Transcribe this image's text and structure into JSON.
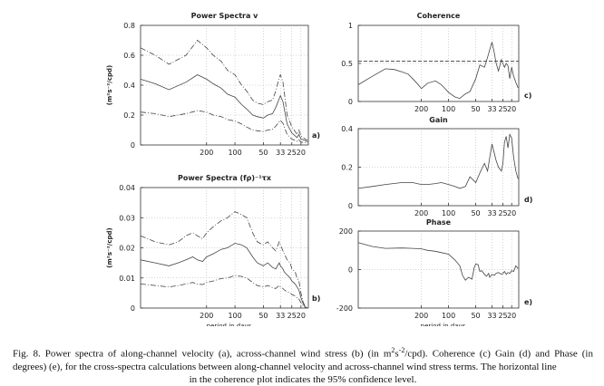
{
  "chart_data": [
    {
      "id": "a",
      "type": "line",
      "title": "Power Spectra v",
      "ylabel": "(m²s⁻²/cpd)",
      "xlabel": "",
      "panel_label": "a)",
      "ylim": [
        0,
        0.8
      ],
      "y_ticks": [
        0,
        0.2,
        0.4,
        0.6,
        0.8
      ],
      "y_tick_labels": [
        "0",
        "0.2",
        "0.4",
        "0.6",
        "0.8"
      ],
      "x_ticks": [
        200,
        100,
        50,
        33,
        25,
        20
      ],
      "x_tick_labels": [
        "200",
        "100",
        "50",
        "33",
        "25",
        "20"
      ],
      "x_range_period_days": [
        1000,
        16.7
      ],
      "grid": true,
      "series": [
        {
          "name": "upper 95%",
          "style": "dash-dot",
          "x": [
            1000,
            700,
            500,
            330,
            250,
            200,
            170,
            140,
            120,
            100,
            85,
            75,
            65,
            58,
            50,
            45,
            40,
            37,
            34,
            33,
            31,
            30,
            28,
            26,
            25,
            23,
            22,
            21,
            20,
            19,
            18,
            17
          ],
          "values": [
            0.65,
            0.6,
            0.54,
            0.6,
            0.7,
            0.65,
            0.6,
            0.56,
            0.5,
            0.47,
            0.4,
            0.36,
            0.3,
            0.28,
            0.27,
            0.29,
            0.3,
            0.36,
            0.45,
            0.47,
            0.42,
            0.35,
            0.2,
            0.15,
            0.12,
            0.09,
            0.07,
            0.1,
            0.06,
            0.05,
            0.04,
            0.03
          ]
        },
        {
          "name": "spectrum",
          "style": "solid",
          "x": [
            1000,
            700,
            500,
            330,
            250,
            200,
            170,
            140,
            120,
            100,
            85,
            75,
            65,
            58,
            50,
            45,
            40,
            37,
            34,
            33,
            31,
            30,
            28,
            26,
            25,
            23,
            22,
            21,
            20,
            19,
            18,
            17
          ],
          "values": [
            0.44,
            0.41,
            0.37,
            0.42,
            0.47,
            0.44,
            0.41,
            0.38,
            0.34,
            0.32,
            0.27,
            0.24,
            0.2,
            0.19,
            0.18,
            0.2,
            0.21,
            0.25,
            0.31,
            0.33,
            0.29,
            0.24,
            0.14,
            0.1,
            0.08,
            0.06,
            0.05,
            0.07,
            0.04,
            0.035,
            0.03,
            0.02
          ]
        },
        {
          "name": "lower 95%",
          "style": "dash-dot",
          "x": [
            1000,
            700,
            500,
            330,
            250,
            200,
            170,
            140,
            120,
            100,
            85,
            75,
            65,
            58,
            50,
            45,
            40,
            37,
            34,
            33,
            31,
            30,
            28,
            26,
            25,
            23,
            22,
            21,
            20,
            19,
            18,
            17
          ],
          "values": [
            0.22,
            0.21,
            0.19,
            0.21,
            0.23,
            0.22,
            0.2,
            0.19,
            0.17,
            0.16,
            0.14,
            0.12,
            0.1,
            0.095,
            0.09,
            0.1,
            0.105,
            0.125,
            0.155,
            0.165,
            0.145,
            0.12,
            0.07,
            0.05,
            0.04,
            0.03,
            0.025,
            0.035,
            0.02,
            0.017,
            0.015,
            0.01
          ]
        }
      ]
    },
    {
      "id": "b",
      "type": "line",
      "title": "Power Spectra (fρ)⁻¹τx",
      "ylabel": "(m²s⁻²/cpd)",
      "xlabel": "period in days",
      "panel_label": "b)",
      "ylim": [
        0,
        0.04
      ],
      "y_ticks": [
        0,
        0.01,
        0.02,
        0.03,
        0.04
      ],
      "y_tick_labels": [
        "0",
        "0.01",
        "0.02",
        "0.03",
        "0.04"
      ],
      "x_ticks": [
        200,
        100,
        50,
        33,
        25,
        20
      ],
      "x_tick_labels": [
        "200",
        "100",
        "50",
        "33",
        "25",
        "20"
      ],
      "x_range_period_days": [
        1000,
        16.7
      ],
      "grid": true,
      "series": [
        {
          "name": "upper 95%",
          "style": "dash-dot",
          "x": [
            1000,
            700,
            500,
            400,
            330,
            280,
            250,
            220,
            200,
            170,
            140,
            120,
            100,
            85,
            75,
            65,
            58,
            50,
            45,
            40,
            37,
            34,
            33,
            31,
            30,
            28,
            26,
            25,
            23,
            22,
            21,
            20,
            19,
            18,
            17
          ],
          "values": [
            0.024,
            0.022,
            0.021,
            0.022,
            0.024,
            0.025,
            0.024,
            0.023,
            0.025,
            0.027,
            0.029,
            0.03,
            0.032,
            0.031,
            0.03,
            0.025,
            0.022,
            0.021,
            0.022,
            0.02,
            0.019,
            0.022,
            0.021,
            0.019,
            0.018,
            0.016,
            0.015,
            0.013,
            0.012,
            0.01,
            0.009,
            0.005,
            0.002,
            0.0005,
            0.0
          ]
        },
        {
          "name": "spectrum",
          "style": "solid",
          "x": [
            1000,
            700,
            500,
            400,
            330,
            280,
            250,
            220,
            200,
            170,
            140,
            120,
            100,
            85,
            75,
            65,
            58,
            50,
            45,
            40,
            37,
            34,
            33,
            31,
            30,
            28,
            26,
            25,
            23,
            22,
            21,
            20,
            19,
            18,
            17
          ],
          "values": [
            0.016,
            0.015,
            0.014,
            0.015,
            0.016,
            0.017,
            0.016,
            0.0155,
            0.017,
            0.018,
            0.0195,
            0.02,
            0.0215,
            0.021,
            0.02,
            0.017,
            0.015,
            0.014,
            0.015,
            0.0135,
            0.013,
            0.015,
            0.014,
            0.013,
            0.012,
            0.011,
            0.01,
            0.009,
            0.008,
            0.007,
            0.006,
            0.0035,
            0.0015,
            0.0003,
            0.0
          ]
        },
        {
          "name": "lower 95%",
          "style": "dash-dot",
          "x": [
            1000,
            700,
            500,
            400,
            330,
            280,
            250,
            220,
            200,
            170,
            140,
            120,
            100,
            85,
            75,
            65,
            58,
            50,
            45,
            40,
            37,
            34,
            33,
            31,
            30,
            28,
            26,
            25,
            23,
            22,
            21,
            20,
            19,
            18,
            17
          ],
          "values": [
            0.008,
            0.0075,
            0.007,
            0.0075,
            0.008,
            0.0085,
            0.008,
            0.0078,
            0.0085,
            0.009,
            0.0098,
            0.01,
            0.0108,
            0.0105,
            0.01,
            0.0085,
            0.0075,
            0.007,
            0.0075,
            0.0068,
            0.0065,
            0.0075,
            0.007,
            0.0065,
            0.006,
            0.0055,
            0.005,
            0.0045,
            0.004,
            0.0035,
            0.003,
            0.0018,
            0.0008,
            0.0002,
            0.0
          ]
        }
      ]
    },
    {
      "id": "c",
      "type": "line",
      "title": "Coherence",
      "ylabel": "",
      "xlabel": "",
      "panel_label": "c)",
      "ylim": [
        0,
        1
      ],
      "y_ticks": [
        0,
        0.5,
        1
      ],
      "y_tick_labels": [
        "0",
        "0.5",
        "1"
      ],
      "x_ticks": [
        200,
        100,
        50,
        33,
        25,
        20
      ],
      "x_tick_labels": [
        "200",
        "100",
        "50",
        "33",
        "25",
        "20"
      ],
      "x_range_period_days": [
        1000,
        16.7
      ],
      "grid": true,
      "confidence_level_95": 0.53,
      "series": [
        {
          "name": "coherence",
          "style": "solid",
          "x": [
            1000,
            700,
            500,
            400,
            330,
            280,
            250,
            220,
            200,
            170,
            140,
            120,
            100,
            85,
            75,
            65,
            58,
            50,
            45,
            40,
            37,
            35,
            33,
            31,
            30,
            28,
            26,
            25,
            24,
            23,
            22,
            21,
            20,
            19,
            18,
            17
          ],
          "values": [
            0.22,
            0.33,
            0.43,
            0.42,
            0.39,
            0.36,
            0.3,
            0.23,
            0.17,
            0.24,
            0.27,
            0.22,
            0.12,
            0.06,
            0.04,
            0.1,
            0.13,
            0.3,
            0.48,
            0.45,
            0.58,
            0.68,
            0.78,
            0.63,
            0.52,
            0.4,
            0.55,
            0.5,
            0.45,
            0.5,
            0.47,
            0.3,
            0.45,
            0.33,
            0.25,
            0.18
          ]
        }
      ]
    },
    {
      "id": "d",
      "type": "line",
      "title": "Gain",
      "ylabel": "",
      "xlabel": "",
      "panel_label": "d)",
      "ylim": [
        0,
        0.4
      ],
      "y_ticks": [
        0,
        0.2,
        0.4
      ],
      "y_tick_labels": [
        "0",
        "0.2",
        "0.4"
      ],
      "x_ticks": [
        200,
        100,
        50,
        33,
        25,
        20
      ],
      "x_tick_labels": [
        "200",
        "100",
        "50",
        "33",
        "25",
        "20"
      ],
      "x_range_period_days": [
        1000,
        16.7
      ],
      "grid": true,
      "series": [
        {
          "name": "gain",
          "style": "solid",
          "x": [
            1000,
            700,
            500,
            330,
            250,
            200,
            170,
            140,
            120,
            100,
            85,
            75,
            65,
            58,
            50,
            45,
            42,
            40,
            37,
            35,
            33,
            31,
            30,
            28,
            26,
            25,
            24,
            23,
            22,
            21,
            20,
            19,
            18,
            17
          ],
          "values": [
            0.09,
            0.1,
            0.11,
            0.12,
            0.12,
            0.11,
            0.11,
            0.115,
            0.12,
            0.11,
            0.1,
            0.09,
            0.1,
            0.15,
            0.12,
            0.17,
            0.2,
            0.22,
            0.18,
            0.25,
            0.32,
            0.27,
            0.24,
            0.2,
            0.18,
            0.22,
            0.33,
            0.36,
            0.3,
            0.37,
            0.35,
            0.25,
            0.18,
            0.14
          ]
        }
      ]
    },
    {
      "id": "e",
      "type": "line",
      "title": "Phase",
      "ylabel": "",
      "xlabel": "period in days",
      "panel_label": "e)",
      "ylim": [
        -200,
        200
      ],
      "y_ticks": [
        -200,
        0,
        200
      ],
      "y_tick_labels": [
        "-200",
        "0",
        "200"
      ],
      "x_ticks": [
        200,
        100,
        50,
        33,
        25,
        20
      ],
      "x_tick_labels": [
        "200",
        "100",
        "50",
        "33",
        "25",
        "20"
      ],
      "x_range_period_days": [
        1000,
        16.7
      ],
      "grid": true,
      "series": [
        {
          "name": "phase",
          "style": "solid",
          "x": [
            1000,
            700,
            500,
            330,
            250,
            200,
            170,
            140,
            120,
            100,
            85,
            75,
            70,
            65,
            60,
            55,
            52,
            50,
            47,
            45,
            43,
            40,
            38,
            36,
            35,
            33,
            31,
            30,
            28,
            26,
            25,
            24,
            23,
            22,
            21,
            20,
            19,
            18,
            17
          ],
          "values": [
            140,
            120,
            110,
            112,
            110,
            108,
            100,
            95,
            88,
            80,
            50,
            20,
            -30,
            -55,
            -40,
            -50,
            10,
            30,
            25,
            -10,
            -5,
            -25,
            -35,
            -20,
            -40,
            -25,
            -30,
            -20,
            -15,
            -25,
            -20,
            -10,
            -25,
            -15,
            -20,
            -5,
            -10,
            20,
            5
          ]
        }
      ]
    }
  ],
  "caption": {
    "line1_pre": "Fig. 8. Power spectra of along-channel velocity (a), across-channel wind stress (b) (in m",
    "line1_sup1": "2",
    "line1_mid": "s",
    "line1_sup2": "-2",
    "line1_post": "/cpd). Coherence (c) Gain (d) and Phase (in",
    "line2": "degrees) (e), for the cross-spectra calculations between along-channel velocity and across-channel wind stress terms. The horizontal line",
    "line3": "in the coherence plot indicates the 95% confidence level."
  }
}
